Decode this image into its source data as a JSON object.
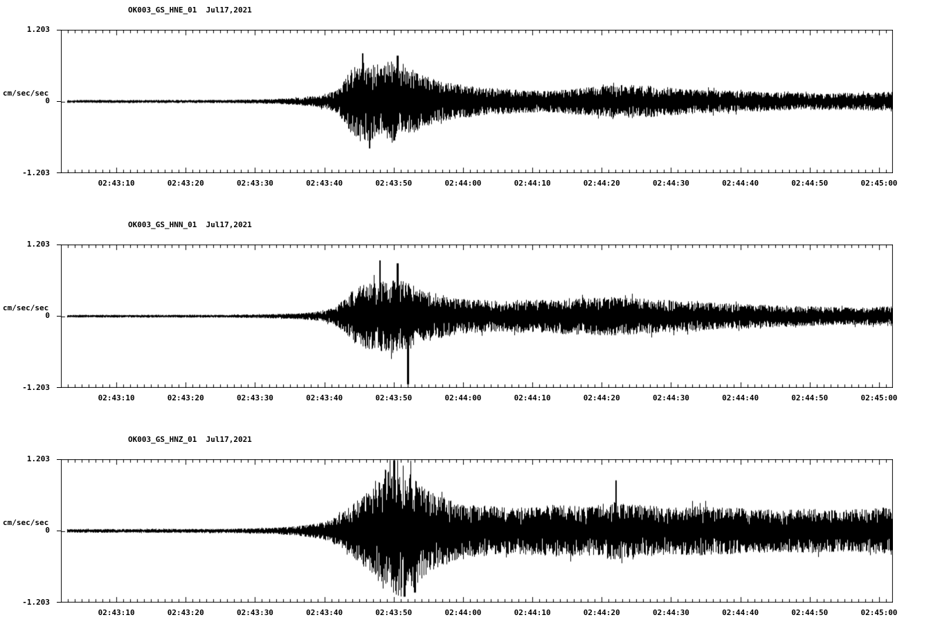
{
  "page": {
    "background": "#ffffff",
    "trace_color": "#000000",
    "axis_color": "#000000"
  },
  "chart_data": [
    {
      "type": "line",
      "kind": "seismic-waveform",
      "title": "OK003_GS_HNE_01  Jul17,2021",
      "station": "OK003",
      "network": "GS",
      "channel": "HNE",
      "location": "01",
      "date": "Jul17,2021",
      "xlabel": "",
      "ylabel": "cm/sec/sec",
      "ylim": [
        -1.203,
        1.203
      ],
      "ytick_labels": [
        "1.203",
        "0",
        "-1.203"
      ],
      "x_start": "02:43:02",
      "x_end": "02:45:02",
      "x_span_seconds": 120,
      "minor_tick_seconds": 1,
      "xtick_interval_seconds": 10,
      "xtick_labels": [
        "02:43:10",
        "02:43:20",
        "02:43:30",
        "02:43:40",
        "02:43:50",
        "02:44:00",
        "02:44:10",
        "02:44:20",
        "02:44:30",
        "02:44:40",
        "02:44:50",
        "02:45:00"
      ],
      "xtick_offsets_seconds": [
        8,
        18,
        28,
        38,
        48,
        58,
        68,
        78,
        88,
        98,
        108,
        118
      ],
      "clip": 1.203,
      "seed": 101,
      "envelope": {
        "t": [
          0,
          24,
          30,
          34,
          37,
          39,
          40,
          41,
          42,
          44,
          46,
          48,
          50,
          52,
          55,
          58,
          62,
          66,
          70,
          74,
          78,
          82,
          86,
          90,
          95,
          100,
          105,
          110,
          115,
          120
        ],
        "a": [
          0.025,
          0.028,
          0.04,
          0.06,
          0.1,
          0.16,
          0.22,
          0.4,
          0.58,
          0.68,
          0.62,
          0.72,
          0.6,
          0.45,
          0.34,
          0.28,
          0.23,
          0.2,
          0.18,
          0.22,
          0.26,
          0.29,
          0.26,
          0.22,
          0.19,
          0.17,
          0.15,
          0.14,
          0.15,
          0.17
        ]
      },
      "spikes": [
        {
          "t": 43.5,
          "v": 0.82
        },
        {
          "t": 48.5,
          "v": 0.78
        },
        {
          "t": 44.5,
          "v": -0.8
        }
      ]
    },
    {
      "type": "line",
      "kind": "seismic-waveform",
      "title": "OK003_GS_HNN_01  Jul17,2021",
      "station": "OK003",
      "network": "GS",
      "channel": "HNN",
      "location": "01",
      "date": "Jul17,2021",
      "xlabel": "",
      "ylabel": "cm/sec/sec",
      "ylim": [
        -1.203,
        1.203
      ],
      "ytick_labels": [
        "1.203",
        "0",
        "-1.203"
      ],
      "x_start": "02:43:02",
      "x_end": "02:45:02",
      "x_span_seconds": 120,
      "minor_tick_seconds": 1,
      "xtick_interval_seconds": 10,
      "xtick_labels": [
        "02:43:10",
        "02:43:20",
        "02:43:30",
        "02:43:40",
        "02:43:50",
        "02:44:00",
        "02:44:10",
        "02:44:20",
        "02:44:30",
        "02:44:40",
        "02:44:50",
        "02:45:00"
      ],
      "xtick_offsets_seconds": [
        8,
        18,
        28,
        38,
        48,
        58,
        68,
        78,
        88,
        98,
        108,
        118
      ],
      "clip": 1.203,
      "seed": 202,
      "envelope": {
        "t": [
          0,
          24,
          30,
          34,
          37,
          39,
          41,
          42,
          44,
          46,
          48,
          50,
          52,
          54,
          57,
          60,
          64,
          68,
          72,
          76,
          80,
          84,
          88,
          92,
          96,
          100,
          105,
          110,
          115,
          120
        ],
        "a": [
          0.022,
          0.025,
          0.035,
          0.05,
          0.08,
          0.13,
          0.3,
          0.45,
          0.55,
          0.6,
          0.63,
          0.58,
          0.45,
          0.4,
          0.32,
          0.28,
          0.27,
          0.29,
          0.31,
          0.32,
          0.33,
          0.3,
          0.27,
          0.25,
          0.22,
          0.2,
          0.18,
          0.16,
          0.15,
          0.17
        ]
      },
      "spikes": [
        {
          "t": 46,
          "v": 0.95
        },
        {
          "t": 50,
          "v": -1.16
        },
        {
          "t": 48.5,
          "v": 0.9
        }
      ]
    },
    {
      "type": "line",
      "kind": "seismic-waveform",
      "title": "OK003_GS_HNZ_01  Jul17,2021",
      "station": "OK003",
      "network": "GS",
      "channel": "HNZ",
      "location": "01",
      "date": "Jul17,2021",
      "xlabel": "",
      "ylabel": "cm/sec/sec",
      "ylim": [
        -1.203,
        1.203
      ],
      "ytick_labels": [
        "1.203",
        "0",
        "-1.203"
      ],
      "x_start": "02:43:02",
      "x_end": "02:45:02",
      "x_span_seconds": 120,
      "minor_tick_seconds": 1,
      "xtick_interval_seconds": 10,
      "xtick_labels": [
        "02:43:10",
        "02:43:20",
        "02:43:30",
        "02:43:40",
        "02:43:50",
        "02:44:00",
        "02:44:10",
        "02:44:20",
        "02:44:30",
        "02:44:40",
        "02:44:50",
        "02:45:00"
      ],
      "xtick_offsets_seconds": [
        8,
        18,
        28,
        38,
        48,
        58,
        68,
        78,
        88,
        98,
        108,
        118
      ],
      "clip": 1.203,
      "seed": 303,
      "envelope": {
        "t": [
          0,
          24,
          30,
          34,
          37,
          39,
          41,
          43,
          45,
          46,
          47,
          49,
          51,
          53,
          55,
          57,
          60,
          64,
          68,
          72,
          76,
          80,
          84,
          88,
          92,
          96,
          100,
          104,
          108,
          112,
          116,
          120
        ],
        "a": [
          0.03,
          0.035,
          0.05,
          0.08,
          0.13,
          0.2,
          0.35,
          0.55,
          0.75,
          0.9,
          1.1,
          1.15,
          0.95,
          0.7,
          0.58,
          0.5,
          0.45,
          0.4,
          0.42,
          0.44,
          0.42,
          0.5,
          0.44,
          0.4,
          0.42,
          0.4,
          0.38,
          0.36,
          0.38,
          0.35,
          0.38,
          0.42
        ]
      },
      "spikes": [
        {
          "t": 48,
          "v": 1.2
        },
        {
          "t": 49.5,
          "v": -1.12
        },
        {
          "t": 80,
          "v": 0.86
        },
        {
          "t": 51,
          "v": -1.05
        }
      ]
    }
  ]
}
